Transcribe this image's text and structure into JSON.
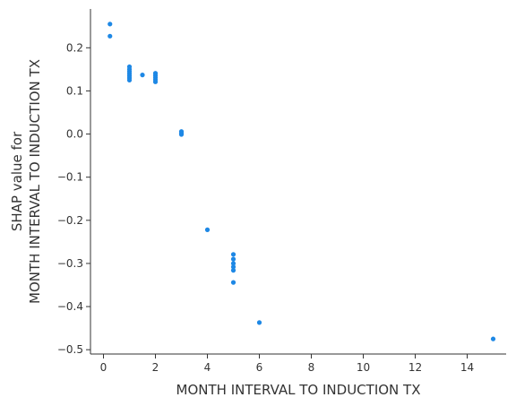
{
  "chart_data": {
    "type": "scatter",
    "xlabel": "MONTH INTERVAL TO INDUCTION TX",
    "ylabel_lines": [
      "SHAP value for",
      "MONTH INTERVAL TO INDUCTION TX"
    ],
    "xlim": [
      -0.5,
      15.5
    ],
    "ylim": [
      -0.51,
      0.29
    ],
    "x_ticks": [
      0,
      2,
      4,
      6,
      8,
      10,
      12,
      14
    ],
    "y_ticks": [
      0.2,
      0.1,
      0.0,
      -0.1,
      -0.2,
      -0.3,
      -0.4,
      -0.5
    ],
    "x_tick_labels": [
      "0",
      "2",
      "4",
      "6",
      "8",
      "10",
      "12",
      "14"
    ],
    "y_tick_labels": [
      "0.2",
      "0.1",
      "0.0",
      "−0.1",
      "−0.2",
      "−0.3",
      "−0.4",
      "−0.5"
    ],
    "point_color": "#1e88e5",
    "points": [
      {
        "x": 0.25,
        "y": 0.255
      },
      {
        "x": 0.25,
        "y": 0.227
      },
      {
        "x": 1,
        "y": 0.156
      },
      {
        "x": 1,
        "y": 0.15
      },
      {
        "x": 1,
        "y": 0.145
      },
      {
        "x": 1,
        "y": 0.14
      },
      {
        "x": 1,
        "y": 0.135
      },
      {
        "x": 1,
        "y": 0.13
      },
      {
        "x": 1,
        "y": 0.125
      },
      {
        "x": 1.5,
        "y": 0.137
      },
      {
        "x": 2,
        "y": 0.141
      },
      {
        "x": 2,
        "y": 0.136
      },
      {
        "x": 2,
        "y": 0.131
      },
      {
        "x": 2,
        "y": 0.126
      },
      {
        "x": 2,
        "y": 0.121
      },
      {
        "x": 3,
        "y": 0.006
      },
      {
        "x": 3,
        "y": 0.002
      },
      {
        "x": 3,
        "y": -0.001
      },
      {
        "x": 4,
        "y": -0.222
      },
      {
        "x": 5,
        "y": -0.279
      },
      {
        "x": 5,
        "y": -0.29
      },
      {
        "x": 5,
        "y": -0.3
      },
      {
        "x": 5,
        "y": -0.308
      },
      {
        "x": 5,
        "y": -0.316
      },
      {
        "x": 5,
        "y": -0.344
      },
      {
        "x": 6,
        "y": -0.437
      },
      {
        "x": 15,
        "y": -0.475
      }
    ]
  }
}
